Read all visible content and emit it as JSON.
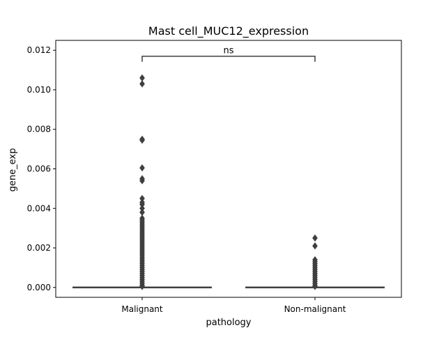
{
  "chart_data": {
    "type": "box",
    "title": "Mast cell_MUC12_expression",
    "xlabel": "pathology",
    "ylabel": "gene_exp",
    "categories": [
      "Malignant",
      "Non-malignant"
    ],
    "ylim": [
      -0.0005,
      0.0125
    ],
    "yticks": [
      0.0,
      0.002,
      0.004,
      0.006,
      0.008,
      0.01,
      0.012
    ],
    "ytick_labels": [
      "0.000",
      "0.002",
      "0.004",
      "0.006",
      "0.008",
      "0.010",
      "0.012"
    ],
    "boxes": [
      {
        "category": "Malignant",
        "q1": 0.0,
        "median": 0.0,
        "q3": 0.0,
        "whisker_low": 0.0,
        "whisker_high": 0.0,
        "outliers": [
          0.0106,
          0.0103,
          0.0075,
          0.00745,
          0.00605,
          0.0055,
          0.0054,
          0.0045,
          0.0043,
          0.0042,
          0.004,
          0.0038,
          0.0035,
          0.0034,
          0.0033,
          0.0032,
          0.0031,
          0.003,
          0.0029,
          0.0028,
          0.0027,
          0.0026,
          0.0025,
          0.0024,
          0.0023,
          0.0022,
          0.0021,
          0.002,
          0.0019,
          0.0018,
          0.0017,
          0.0016,
          0.0015,
          0.0014,
          0.0013,
          0.0012,
          0.0011,
          0.001,
          0.0009,
          0.0008,
          0.0007,
          0.0006,
          0.0005,
          0.0004,
          0.0003,
          0.0002,
          0.0001,
          5e-05
        ]
      },
      {
        "category": "Non-malignant",
        "q1": 0.0,
        "median": 0.0,
        "q3": 0.0,
        "whisker_low": 0.0,
        "whisker_high": 0.0,
        "outliers": [
          0.0025,
          0.0021,
          0.0014,
          0.0013,
          0.0012,
          0.0011,
          0.001,
          0.0009,
          0.0008,
          0.0007,
          0.0006,
          0.0005,
          0.0004,
          0.0003,
          0.0002,
          0.0001,
          5e-05
        ]
      }
    ],
    "annotation": {
      "text": "ns",
      "between": [
        "Malignant",
        "Non-malignant"
      ],
      "y": 0.0117
    },
    "grid": false,
    "colors": {
      "box_edge": "#3f3f3f",
      "outlier": "#3f3f3f",
      "axis": "#000000",
      "background": "#ffffff"
    }
  }
}
